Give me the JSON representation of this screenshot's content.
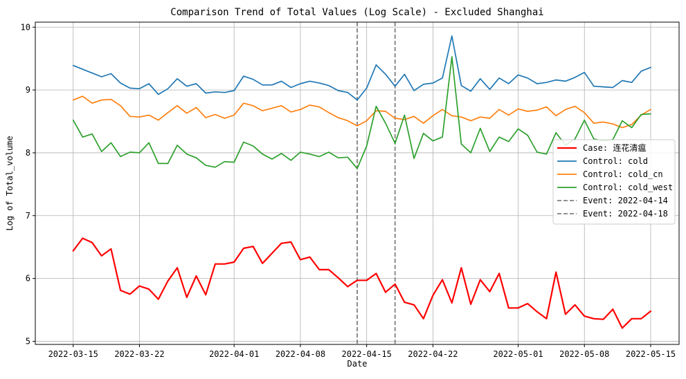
{
  "chart_data": {
    "type": "line",
    "title": "Comparison Trend of Total Values (Log Scale) - Excluded Shanghai",
    "xlabel": "Date",
    "ylabel": "Log of Total_volume",
    "x_start": "2022-03-15",
    "x_end": "2022-05-15",
    "xlim": [
      "2022-03-11",
      "2022-05-18"
    ],
    "ylim": [
      4.95,
      10.08
    ],
    "x_ticks": [
      "2022-03-15",
      "2022-03-22",
      "2022-04-01",
      "2022-04-08",
      "2022-04-15",
      "2022-04-22",
      "2022-05-01",
      "2022-05-08",
      "2022-05-15"
    ],
    "y_ticks": [
      5,
      6,
      7,
      8,
      9,
      10
    ],
    "grid": true,
    "legend_position": "center-right",
    "series": [
      {
        "name": "Case: 连花清瘟",
        "color": "#ff0000",
        "line_width": 2.2,
        "values": [
          6.44,
          6.64,
          6.57,
          6.36,
          6.47,
          5.81,
          5.75,
          5.88,
          5.83,
          5.67,
          5.96,
          6.17,
          5.7,
          6.04,
          5.74,
          6.23,
          6.23,
          6.26,
          6.48,
          6.51,
          6.24,
          6.4,
          6.56,
          6.58,
          6.3,
          6.34,
          6.14,
          6.14,
          6.01,
          5.87,
          5.97,
          5.97,
          6.08,
          5.78,
          5.91,
          5.62,
          5.58,
          5.36,
          5.73,
          5.98,
          5.61,
          6.17,
          5.59,
          5.98,
          5.79,
          6.08,
          5.53,
          5.53,
          5.6,
          5.47,
          5.36,
          6.1,
          5.43,
          5.58,
          5.4,
          5.36,
          5.35,
          5.51,
          5.21,
          5.36,
          5.36,
          5.48
        ]
      },
      {
        "name": "Control: cold",
        "color": "#1f77b4",
        "line_width": 1.7,
        "values": [
          9.39,
          9.33,
          9.27,
          9.21,
          9.26,
          9.11,
          9.03,
          9.02,
          9.1,
          8.93,
          9.02,
          9.18,
          9.06,
          9.1,
          8.95,
          8.97,
          8.96,
          8.99,
          9.22,
          9.17,
          9.08,
          9.08,
          9.14,
          9.04,
          9.1,
          9.14,
          9.11,
          9.07,
          8.99,
          8.96,
          8.84,
          9.03,
          9.4,
          9.25,
          9.06,
          9.25,
          8.99,
          9.09,
          9.11,
          9.19,
          9.86,
          9.07,
          8.98,
          9.18,
          9.01,
          9.19,
          9.1,
          9.24,
          9.19,
          9.1,
          9.12,
          9.16,
          9.14,
          9.2,
          9.28,
          9.06,
          9.05,
          9.04,
          9.15,
          9.12,
          9.3,
          9.36
        ]
      },
      {
        "name": "Control: cold_cn",
        "color": "#ff7f0e",
        "line_width": 1.7,
        "values": [
          8.84,
          8.9,
          8.79,
          8.84,
          8.85,
          8.75,
          8.58,
          8.57,
          8.6,
          8.52,
          8.64,
          8.75,
          8.63,
          8.72,
          8.56,
          8.61,
          8.55,
          8.6,
          8.79,
          8.75,
          8.67,
          8.71,
          8.75,
          8.65,
          8.69,
          8.76,
          8.73,
          8.64,
          8.56,
          8.51,
          8.43,
          8.51,
          8.67,
          8.66,
          8.55,
          8.53,
          8.58,
          8.47,
          8.59,
          8.69,
          8.59,
          8.57,
          8.51,
          8.57,
          8.55,
          8.69,
          8.6,
          8.7,
          8.66,
          8.68,
          8.73,
          8.59,
          8.69,
          8.74,
          8.64,
          8.47,
          8.49,
          8.46,
          8.4,
          8.45,
          8.6,
          8.69
        ]
      },
      {
        "name": "Control: cold_west",
        "color": "#2ca02c",
        "line_width": 1.7,
        "values": [
          8.52,
          8.25,
          8.3,
          8.02,
          8.16,
          7.94,
          8.01,
          8.0,
          8.16,
          7.83,
          7.83,
          8.12,
          7.98,
          7.92,
          7.8,
          7.77,
          7.86,
          7.85,
          8.17,
          8.11,
          7.98,
          7.9,
          7.99,
          7.88,
          8.01,
          7.98,
          7.94,
          8.01,
          7.92,
          7.93,
          7.75,
          8.11,
          8.74,
          8.47,
          8.15,
          8.6,
          7.91,
          8.31,
          8.19,
          8.25,
          9.53,
          8.14,
          8.0,
          8.39,
          8.02,
          8.25,
          8.18,
          8.38,
          8.28,
          8.01,
          7.98,
          8.32,
          8.12,
          8.22,
          8.52,
          8.22,
          8.19,
          8.21,
          8.51,
          8.4,
          8.61,
          8.62
        ]
      }
    ],
    "events": [
      {
        "name": "Event: 2022-04-14",
        "date": "2022-04-14",
        "color": "#808080"
      },
      {
        "name": "Event: 2022-04-18",
        "date": "2022-04-18",
        "color": "#808080"
      }
    ]
  }
}
